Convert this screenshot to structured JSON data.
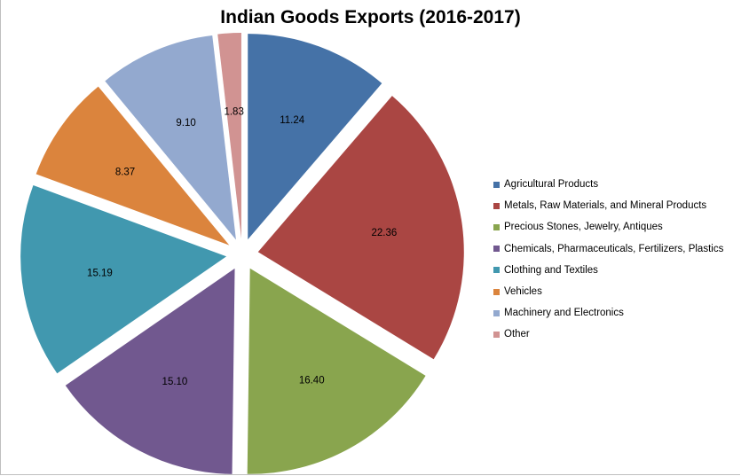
{
  "chart_data": {
    "type": "pie",
    "title": "Indian Goods Exports (2016-2017)",
    "exploded": true,
    "legend_position": "right",
    "slices": [
      {
        "label": "Agricultural Products",
        "value": 11.24,
        "value_label": "11.24",
        "color": "#4572A7"
      },
      {
        "label": "Metals, Raw Materials, and Mineral Products",
        "value": 22.36,
        "value_label": "22.36",
        "color": "#AA4643"
      },
      {
        "label": "Precious Stones, Jewelry, Antiques",
        "value": 16.4,
        "value_label": "16.40",
        "color": "#89A54E"
      },
      {
        "label": "Chemicals, Pharmaceuticals, Fertilizers, Plastics",
        "value": 15.1,
        "value_label": "15.10",
        "color": "#71588F"
      },
      {
        "label": "Clothing and Textiles",
        "value": 15.19,
        "value_label": "15.19",
        "color": "#4198AF"
      },
      {
        "label": "Vehicles",
        "value": 8.37,
        "value_label": "8.37",
        "color": "#DB843D"
      },
      {
        "label": "Machinery and Electronics",
        "value": 9.1,
        "value_label": "9.10",
        "color": "#93A9CF"
      },
      {
        "label": "Other",
        "value": 1.83,
        "value_label": "1.83",
        "color": "#D19392"
      }
    ]
  }
}
